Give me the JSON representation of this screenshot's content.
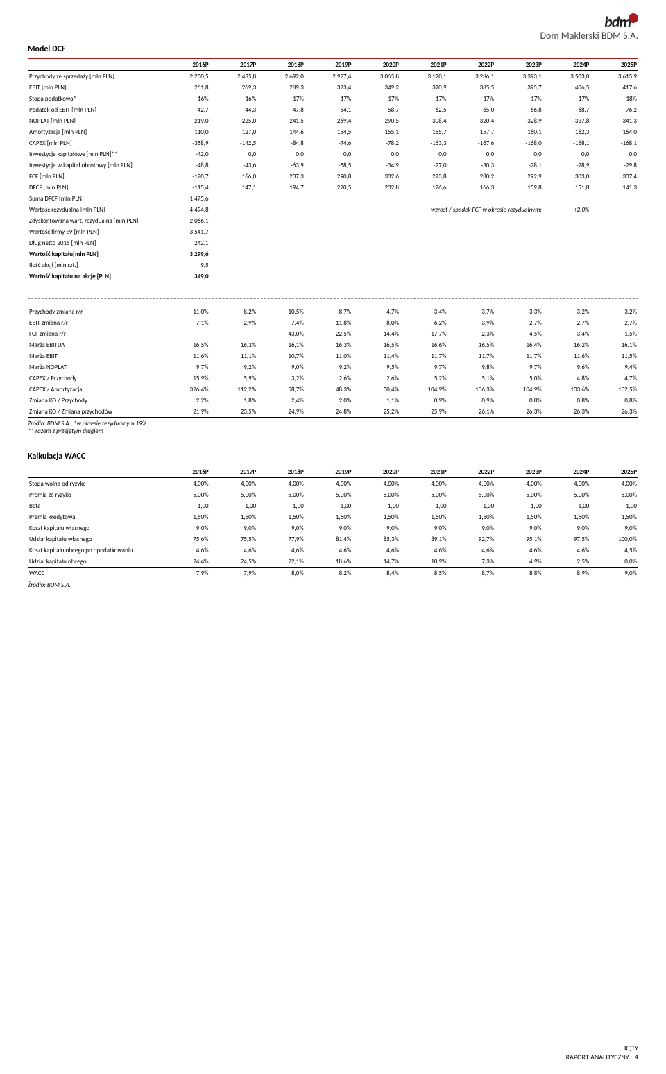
{
  "header": {
    "logo_main": "bdm",
    "logo_sub": "Dom Maklerski BDM S.A."
  },
  "colors": {
    "accent": "#a31c20",
    "rule": "#000000",
    "dash": "#888888",
    "text": "#000000",
    "bg": "#ffffff"
  },
  "typography": {
    "body_pt": 9,
    "heading_pt": 12,
    "family": "Calibri"
  },
  "section1": {
    "title": "Model DCF",
    "years": [
      "2016P",
      "2017P",
      "2018P",
      "2019P",
      "2020P",
      "2021P",
      "2022P",
      "2023P",
      "2024P",
      "2025P"
    ],
    "rows": [
      {
        "label": "Przychody ze sprzedaży [mln PLN]",
        "v": [
          "2 250,5",
          "2 435,8",
          "2 692,0",
          "2 927,4",
          "3 065,8",
          "3 170,1",
          "3 286,1",
          "3 393,1",
          "3 503,0",
          "3 615,9"
        ]
      },
      {
        "label": "EBIT [mln PLN]",
        "v": [
          "261,8",
          "269,3",
          "289,3",
          "323,4",
          "349,2",
          "370,9",
          "385,5",
          "395,7",
          "406,5",
          "417,6"
        ]
      },
      {
        "label": "Stopa podatkowa*",
        "v": [
          "16%",
          "16%",
          "17%",
          "17%",
          "17%",
          "17%",
          "17%",
          "17%",
          "17%",
          "18%"
        ]
      },
      {
        "label": "Podatek od EBIT [mln PLN]",
        "v": [
          "42,7",
          "44,3",
          "47,8",
          "54,1",
          "58,7",
          "62,5",
          "65,0",
          "66,8",
          "68,7",
          "76,2"
        ]
      },
      {
        "label": "NOPLAT [mln PLN]",
        "v": [
          "219,0",
          "225,0",
          "241,5",
          "269,4",
          "290,5",
          "308,4",
          "320,4",
          "328,9",
          "337,8",
          "341,3"
        ]
      },
      {
        "label": "Amortyzacja [mln PLN]",
        "v": [
          "110,0",
          "127,0",
          "144,6",
          "154,5",
          "155,1",
          "155,7",
          "157,7",
          "160,1",
          "162,3",
          "164,0"
        ]
      },
      {
        "label": "CAPEX [mln PLN]",
        "v": [
          "-358,9",
          "-142,5",
          "-84,8",
          "-74,6",
          "-78,2",
          "-163,3",
          "-167,6",
          "-168,0",
          "-168,1",
          "-168,1"
        ]
      },
      {
        "label": "Inwestycje kapitałowe [mln PLN]**",
        "v": [
          "-42,0",
          "0,0",
          "0,0",
          "0,0",
          "0,0",
          "0,0",
          "0,0",
          "0,0",
          "0,0",
          "0,0"
        ]
      },
      {
        "label": "Inwestycje w kapitał obrotowy [mln PLN]",
        "v": [
          "-48,8",
          "-43,6",
          "-63,9",
          "-58,5",
          "-34,9",
          "-27,0",
          "-30,3",
          "-28,1",
          "-28,9",
          "-29,8"
        ]
      },
      {
        "label": "FCF [mln PLN]",
        "v": [
          "-120,7",
          "166,0",
          "237,3",
          "290,8",
          "332,6",
          "273,8",
          "280,2",
          "292,9",
          "303,0",
          "307,4"
        ]
      },
      {
        "label": "DFCF [mln PLN]",
        "v": [
          "-115,4",
          "147,1",
          "194,7",
          "220,5",
          "232,8",
          "176,6",
          "166,3",
          "159,8",
          "151,8",
          "141,3"
        ]
      }
    ],
    "singles": [
      {
        "label": "Suma DFCF [mln PLN]",
        "val": "1 475,6"
      },
      {
        "label": "Wartość rezydualna [mln PLN]",
        "val": "4 494,8",
        "note_label": "wzrost / spadek FCF w okresie rezydualnym:",
        "note_val": "+2,0%"
      },
      {
        "label": "Zdyskontowana wart. rezydualna [mln PLN]",
        "val": "2 066,1"
      },
      {
        "label": "Wartość firmy EV [mln PLN]",
        "val": "3 541,7"
      },
      {
        "label": "Dług netto 2015 [mln PLN]",
        "val": "242,1"
      },
      {
        "label": "Wartość kapitału[mln PLN]",
        "val": "3 299,6",
        "bold": true
      },
      {
        "label": "Ilość akcji [mln szt.]",
        "val": "9,5"
      },
      {
        "label": "Wartość kapitału na akcję [PLN]",
        "val": "349,0",
        "bold": true
      }
    ]
  },
  "section2": {
    "rows": [
      {
        "label": "Przychody zmiana r/r",
        "v": [
          "11,0%",
          "8,2%",
          "10,5%",
          "8,7%",
          "4,7%",
          "3,4%",
          "3,7%",
          "3,3%",
          "3,2%",
          "3,2%"
        ]
      },
      {
        "label": "EBIT zmiana r/r",
        "v": [
          "7,1%",
          "2,9%",
          "7,4%",
          "11,8%",
          "8,0%",
          "6,2%",
          "3,9%",
          "2,7%",
          "2,7%",
          "2,7%"
        ]
      },
      {
        "label": "FCF zmiana r/r",
        "v": [
          "-",
          "-",
          "43,0%",
          "22,5%",
          "14,4%",
          "-17,7%",
          "2,3%",
          "4,5%",
          "3,4%",
          "1,5%"
        ]
      },
      {
        "label": "Marża EBITDA",
        "v": [
          "16,5%",
          "16,3%",
          "16,1%",
          "16,3%",
          "16,5%",
          "16,6%",
          "16,5%",
          "16,4%",
          "16,2%",
          "16,1%"
        ]
      },
      {
        "label": "Marża EBIT",
        "v": [
          "11,6%",
          "11,1%",
          "10,7%",
          "11,0%",
          "11,4%",
          "11,7%",
          "11,7%",
          "11,7%",
          "11,6%",
          "11,5%"
        ]
      },
      {
        "label": "Marża NOPLAT",
        "v": [
          "9,7%",
          "9,2%",
          "9,0%",
          "9,2%",
          "9,5%",
          "9,7%",
          "9,8%",
          "9,7%",
          "9,6%",
          "9,4%"
        ]
      },
      {
        "label": "CAPEX / Przychody",
        "v": [
          "15,9%",
          "5,9%",
          "3,2%",
          "2,6%",
          "2,6%",
          "5,2%",
          "5,1%",
          "5,0%",
          "4,8%",
          "4,7%"
        ]
      },
      {
        "label": "CAPEX / Amortyzacja",
        "v": [
          "326,4%",
          "112,2%",
          "58,7%",
          "48,3%",
          "50,4%",
          "104,9%",
          "106,3%",
          "104,9%",
          "103,6%",
          "102,5%"
        ]
      },
      {
        "label": "Zmiana KO / Przychody",
        "v": [
          "2,2%",
          "1,8%",
          "2,4%",
          "2,0%",
          "1,1%",
          "0,9%",
          "0,9%",
          "0,8%",
          "0,8%",
          "0,8%"
        ]
      },
      {
        "label": "Zmiana KO / Zmiana przychodów",
        "v": [
          "21,9%",
          "23,5%",
          "24,9%",
          "24,8%",
          "25,2%",
          "25,9%",
          "26,1%",
          "26,3%",
          "26,3%",
          "26,3%"
        ]
      }
    ],
    "footnote": "Źródło: BDM S.A., *w okresie rezydualnym 19%\n** razem z przejętym długiem"
  },
  "section3": {
    "title": "Kalkulacja WACC",
    "years": [
      "2016P",
      "2017P",
      "2018P",
      "2019P",
      "2020P",
      "2021P",
      "2022P",
      "2023P",
      "2024P",
      "2025P"
    ],
    "rows": [
      {
        "label": "Stopa wolna od ryzyka",
        "v": [
          "4,00%",
          "4,00%",
          "4,00%",
          "4,00%",
          "4,00%",
          "4,00%",
          "4,00%",
          "4,00%",
          "4,00%",
          "4,00%"
        ]
      },
      {
        "label": "Premia za ryzyko",
        "v": [
          "5,00%",
          "5,00%",
          "5,00%",
          "5,00%",
          "5,00%",
          "5,00%",
          "5,00%",
          "5,00%",
          "5,00%",
          "5,00%"
        ]
      },
      {
        "label": "Beta",
        "v": [
          "1,00",
          "1,00",
          "1,00",
          "1,00",
          "1,00",
          "1,00",
          "1,00",
          "1,00",
          "1,00",
          "1,00"
        ]
      },
      {
        "label": "Premia kredytowa",
        "v": [
          "1,50%",
          "1,50%",
          "1,50%",
          "1,50%",
          "1,50%",
          "1,50%",
          "1,50%",
          "1,50%",
          "1,50%",
          "1,50%"
        ]
      },
      {
        "label": "Koszt kapitału własnego",
        "v": [
          "9,0%",
          "9,0%",
          "9,0%",
          "9,0%",
          "9,0%",
          "9,0%",
          "9,0%",
          "9,0%",
          "9,0%",
          "9,0%"
        ]
      },
      {
        "label": "Udział kapitału własnego",
        "v": [
          "75,6%",
          "75,5%",
          "77,9%",
          "81,4%",
          "85,3%",
          "89,1%",
          "92,7%",
          "95,1%",
          "97,5%",
          "100,0%"
        ]
      },
      {
        "label": "Koszt kapitału obcego po opodatkowaniu",
        "v": [
          "4,6%",
          "4,6%",
          "4,6%",
          "4,6%",
          "4,6%",
          "4,6%",
          "4,6%",
          "4,6%",
          "4,6%",
          "4,5%"
        ]
      },
      {
        "label": "Udział kapitału obcego",
        "v": [
          "24,4%",
          "24,5%",
          "22,1%",
          "18,6%",
          "14,7%",
          "10,9%",
          "7,3%",
          "4,9%",
          "2,5%",
          "0,0%"
        ]
      },
      {
        "label": "WACC",
        "v": [
          "7,9%",
          "7,9%",
          "8,0%",
          "8,2%",
          "8,4%",
          "8,5%",
          "8,7%",
          "8,8%",
          "8,9%",
          "9,0%"
        ]
      }
    ],
    "footnote": "Źródło: BDM S.A."
  },
  "footer": {
    "title": "KĘTY",
    "sub": "RAPORT ANALITYCZNY",
    "page": "4"
  }
}
